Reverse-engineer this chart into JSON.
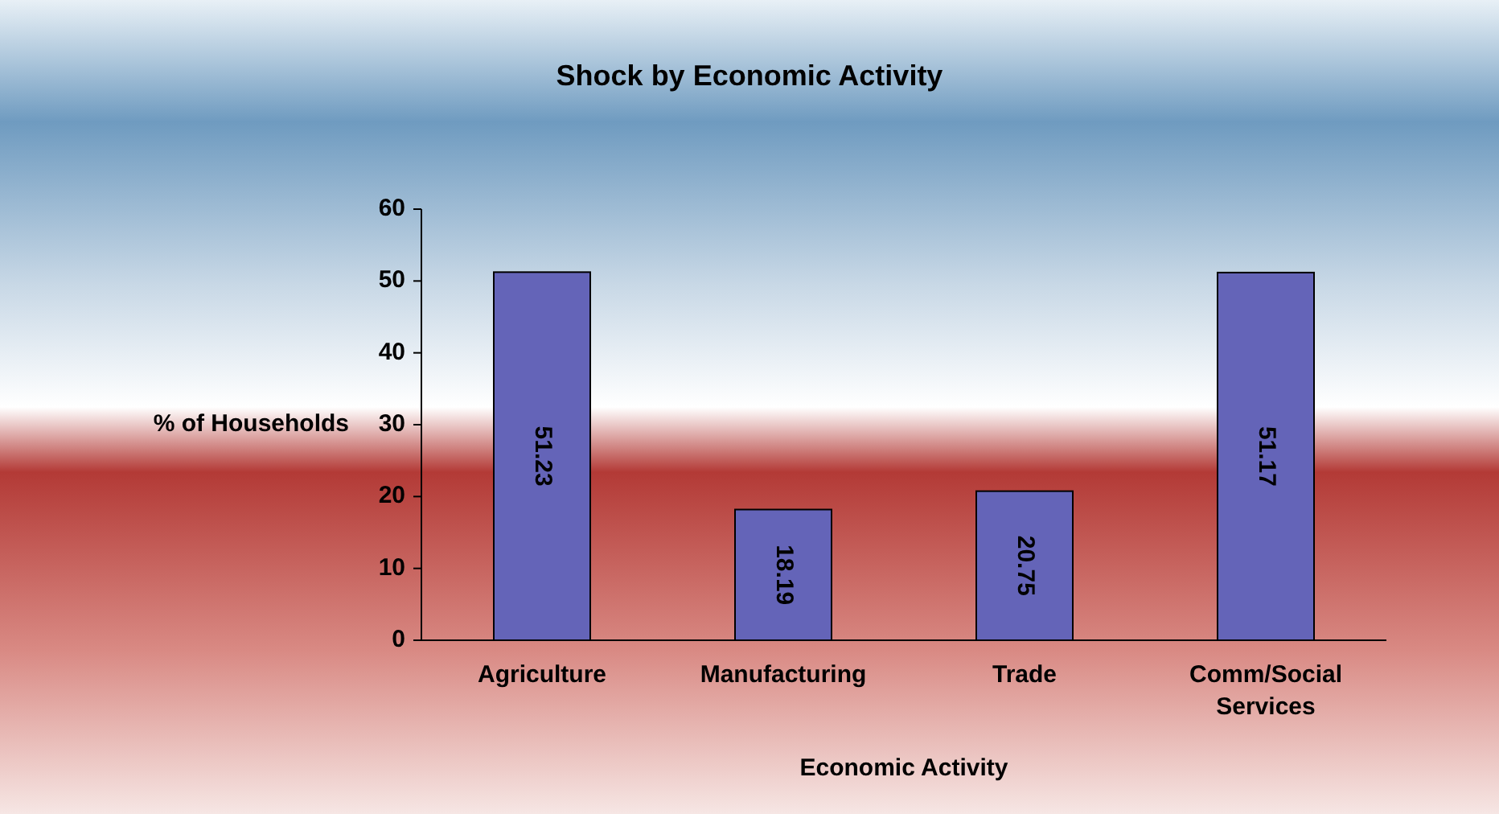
{
  "chart_data": {
    "type": "bar",
    "title": "Shock by Economic Activity",
    "xlabel": "Economic Activity",
    "ylabel": "% of Households",
    "categories": [
      "Agriculture",
      "Manufacturing",
      "Trade",
      "Comm/Social Services"
    ],
    "values": [
      51.23,
      18.19,
      20.75,
      51.17
    ],
    "color": "#6464b8",
    "ylim": [
      0,
      60
    ],
    "yticks": [
      0,
      10,
      20,
      30,
      40,
      50,
      60
    ],
    "data_labels": true,
    "grid": false
  }
}
